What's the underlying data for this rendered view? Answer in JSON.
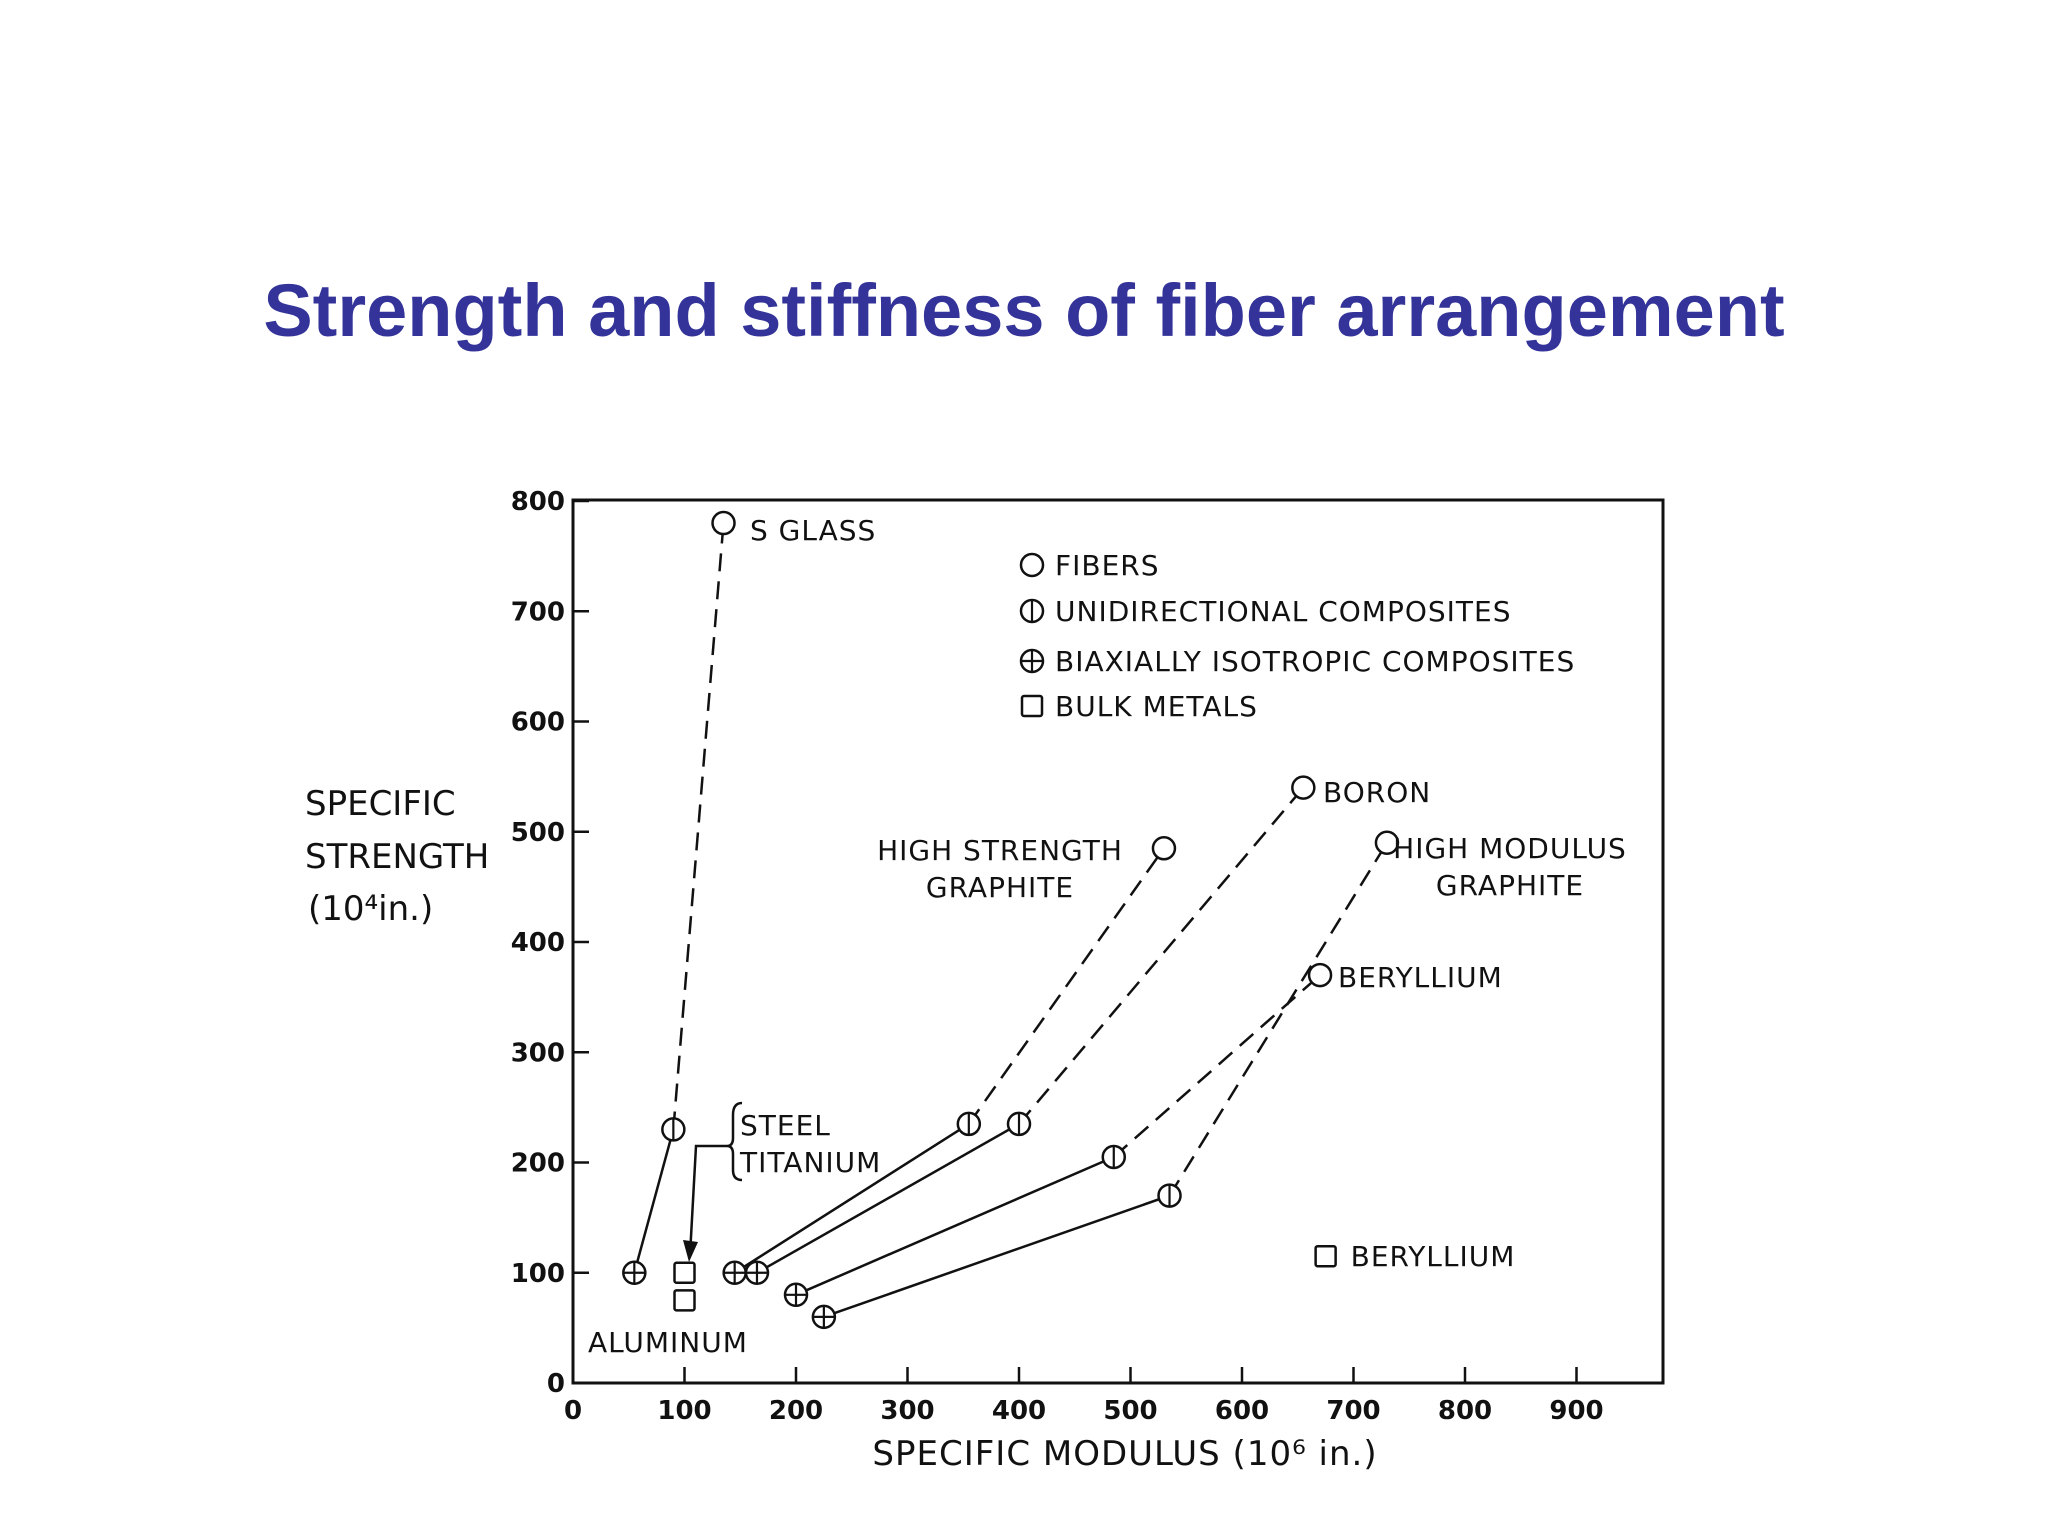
{
  "title": "Strength and stiffness of fiber arrangement",
  "chart_data": {
    "type": "scatter",
    "title": "Strength and stiffness of fiber arrangement",
    "xlabel": "SPECIFIC MODULUS (10⁶ in.)",
    "ylabel": [
      "SPECIFIC",
      "STRENGTH",
      "(10⁴in.)"
    ],
    "xlim": [
      0,
      1000
    ],
    "ylim": [
      0,
      800
    ],
    "x_ticks": [
      0,
      100,
      200,
      300,
      400,
      500,
      600,
      700,
      800,
      900
    ],
    "y_ticks": [
      0,
      100,
      200,
      300,
      400,
      500,
      600,
      700,
      800
    ],
    "legend": [
      {
        "marker": "fiber",
        "label": "FIBERS"
      },
      {
        "marker": "unidirectional",
        "label": "UNIDIRECTIONAL  COMPOSITES"
      },
      {
        "marker": "biaxial",
        "label": "BIAXIALLY ISOTROPIC COMPOSITES"
      },
      {
        "marker": "bulk",
        "label": "BULK METALS"
      }
    ],
    "legend_position": "top-right",
    "series": [
      {
        "label_lines": [
          "S GLASS"
        ],
        "points": [
          {
            "x": 55,
            "y": 100,
            "marker": "biaxial"
          },
          {
            "x": 90,
            "y": 230,
            "marker": "unidirectional"
          },
          {
            "x": 135,
            "y": 780,
            "marker": "fiber"
          }
        ]
      },
      {
        "label_lines": [
          "HIGH STRENGTH",
          "GRAPHITE"
        ],
        "points": [
          {
            "x": 145,
            "y": 100,
            "marker": "biaxial"
          },
          {
            "x": 355,
            "y": 235,
            "marker": "unidirectional"
          },
          {
            "x": 530,
            "y": 485,
            "marker": "fiber"
          }
        ]
      },
      {
        "label_lines": [
          "BORON"
        ],
        "points": [
          {
            "x": 165,
            "y": 100,
            "marker": "biaxial"
          },
          {
            "x": 400,
            "y": 235,
            "marker": "unidirectional"
          },
          {
            "x": 655,
            "y": 540,
            "marker": "fiber"
          }
        ]
      },
      {
        "label_lines": [
          "BERYLLIUM"
        ],
        "points": [
          {
            "x": 200,
            "y": 80,
            "marker": "biaxial"
          },
          {
            "x": 485,
            "y": 205,
            "marker": "unidirectional"
          },
          {
            "x": 670,
            "y": 370,
            "marker": "fiber"
          }
        ]
      },
      {
        "label_lines": [
          "HIGH MODULUS",
          "GRAPHITE"
        ],
        "points": [
          {
            "x": 225,
            "y": 60,
            "marker": "biaxial"
          },
          {
            "x": 535,
            "y": 170,
            "marker": "unidirectional"
          },
          {
            "x": 730,
            "y": 490,
            "marker": "fiber"
          }
        ]
      }
    ],
    "bulk_metals": [
      {
        "x": 100,
        "y": 100,
        "label": ""
      },
      {
        "x": 100,
        "y": 75,
        "label": ""
      },
      {
        "x": 675,
        "y": 115,
        "label": "BERYLLIUM"
      }
    ],
    "annotations": {
      "steel": "STEEL",
      "titanium": "TITANIUM",
      "aluminum": "ALUMINUM"
    }
  }
}
